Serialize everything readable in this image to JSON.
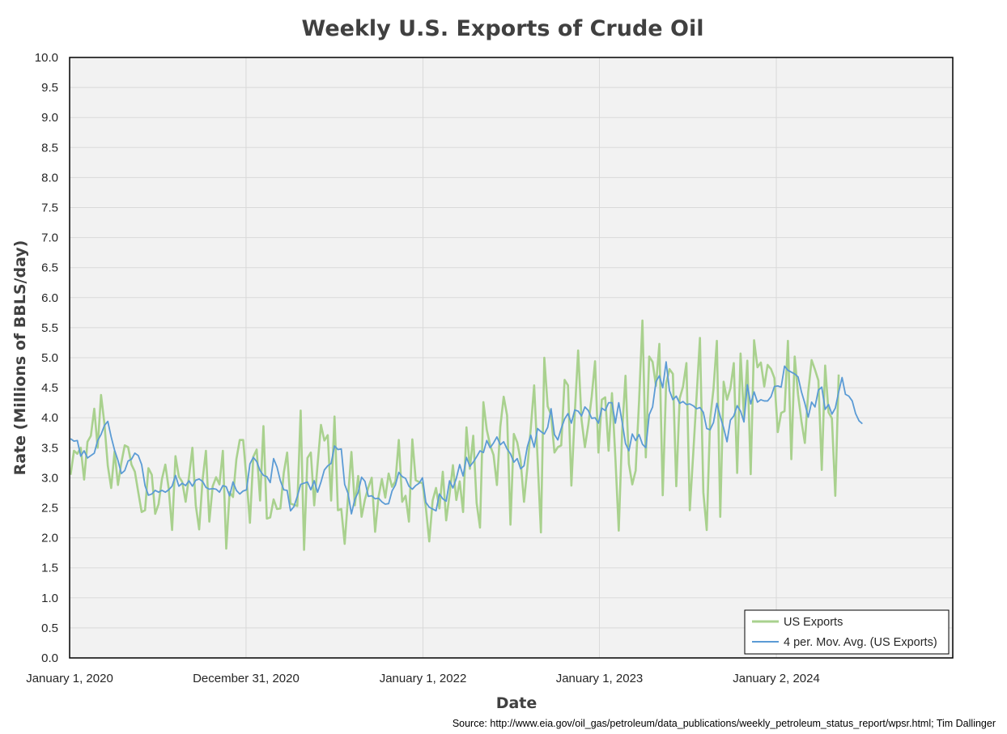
{
  "chart_data": {
    "type": "line",
    "title": "Weekly U.S. Exports of Crude Oil",
    "xlabel": "Date",
    "ylabel": "Rate (Millions of BBLS/day)",
    "ylim": [
      0,
      10
    ],
    "y_ticks": [
      "0.0",
      "0.5",
      "1.0",
      "1.5",
      "2.0",
      "2.5",
      "3.0",
      "3.5",
      "4.0",
      "4.5",
      "5.0",
      "5.5",
      "6.0",
      "6.5",
      "7.0",
      "7.5",
      "8.0",
      "8.5",
      "9.0",
      "9.5",
      "10.0"
    ],
    "xlim": [
      "2020-01-01",
      "2025-01-01"
    ],
    "x_ticks": [
      {
        "date": "2020-01-01",
        "label": "January 1, 2020"
      },
      {
        "date": "2020-12-31",
        "label": "December 31, 2020"
      },
      {
        "date": "2022-01-01",
        "label": "January 1, 2022"
      },
      {
        "date": "2023-01-01",
        "label": "January 1, 2023"
      },
      {
        "date": "2024-01-02",
        "label": "January 2, 2024"
      }
    ],
    "grid": true,
    "legend_position": "bottom-right",
    "series": [
      {
        "name": "US Exports",
        "color": "#a9d18e",
        "start_date": "2020-01-03",
        "interval_days": 7,
        "values": [
          3.05,
          3.45,
          3.4,
          3.5,
          2.97,
          3.6,
          3.7,
          4.15,
          3.5,
          4.38,
          3.9,
          3.2,
          2.83,
          3.44,
          2.88,
          3.25,
          3.54,
          3.51,
          3.22,
          3.1,
          2.76,
          2.43,
          2.46,
          3.16,
          3.05,
          2.4,
          2.56,
          2.98,
          3.22,
          2.82,
          2.13,
          3.36,
          3.02,
          2.93,
          2.6,
          3.02,
          3.5,
          2.54,
          2.14,
          2.96,
          3.45,
          2.27,
          2.86,
          3.01,
          2.89,
          3.45,
          1.82,
          2.76,
          2.68,
          3.31,
          3.63,
          3.63,
          2.98,
          2.25,
          3.35,
          3.47,
          2.62,
          3.86,
          2.32,
          2.34,
          2.64,
          2.48,
          2.49,
          3.08,
          3.42,
          2.57,
          2.55,
          2.53,
          4.12,
          1.8,
          3.33,
          3.42,
          2.54,
          3.22,
          3.88,
          3.62,
          3.71,
          2.62,
          4.02,
          2.46,
          2.48,
          1.9,
          2.68,
          3.43,
          2.54,
          3.03,
          2.35,
          2.64,
          2.84,
          3.0,
          2.1,
          2.68,
          2.98,
          2.67,
          3.07,
          2.85,
          2.94,
          3.63,
          2.6,
          2.7,
          2.27,
          3.64,
          2.96,
          2.93,
          2.91,
          2.5,
          1.94,
          2.62,
          2.83,
          2.49,
          3.1,
          2.29,
          2.72,
          3.21,
          2.63,
          2.94,
          2.43,
          3.84,
          3.15,
          3.7,
          2.58,
          2.17,
          4.26,
          3.8,
          3.54,
          3.38,
          2.88,
          3.85,
          4.35,
          4.04,
          2.22,
          3.73,
          3.59,
          3.29,
          2.6,
          3.17,
          3.82,
          4.54,
          3.34,
          2.09,
          5.0,
          4.19,
          4.05,
          3.42,
          3.51,
          3.54,
          4.63,
          4.54,
          2.87,
          4.06,
          5.12,
          3.97,
          3.51,
          3.88,
          4.35,
          4.94,
          3.42,
          4.3,
          4.34,
          3.45,
          4.41,
          3.34,
          2.12,
          3.77,
          4.7,
          3.23,
          2.89,
          3.12,
          4.27,
          5.62,
          3.34,
          5.02,
          4.93,
          4.53,
          5.23,
          2.71,
          4.57,
          4.81,
          4.73,
          2.86,
          4.32,
          4.52,
          4.91,
          2.46,
          3.39,
          4.35,
          5.33,
          2.76,
          2.13,
          3.97,
          4.48,
          5.28,
          2.35,
          4.6,
          4.3,
          4.49,
          4.91,
          3.08,
          5.07,
          4.01,
          4.95,
          3.06,
          5.29,
          4.84,
          4.92,
          4.52,
          4.88,
          4.81,
          4.66,
          3.76,
          4.08,
          4.11,
          5.28,
          3.31,
          5.02,
          4.38,
          3.94,
          3.58,
          4.43,
          4.96,
          4.8,
          4.62,
          3.13,
          4.87,
          4.09,
          3.99,
          2.7,
          4.72
        ]
      },
      {
        "name": "4 per. Mov. Avg. (US Exports)",
        "color": "#5b9bd5",
        "start_date": "2020-01-03",
        "interval_days": 7,
        "values": [
          3.65,
          3.61,
          3.62,
          3.36,
          3.45,
          3.33,
          3.37,
          3.41,
          3.62,
          3.72,
          3.87,
          3.94,
          3.68,
          3.46,
          3.29,
          3.07,
          3.12,
          3.28,
          3.31,
          3.41,
          3.37,
          3.22,
          2.87,
          2.71,
          2.73,
          2.79,
          2.76,
          2.79,
          2.76,
          2.8,
          2.86,
          3.04,
          2.86,
          2.91,
          2.87,
          2.95,
          2.86,
          2.96,
          2.98,
          2.94,
          2.84,
          2.81,
          2.82,
          2.81,
          2.76,
          2.87,
          2.85,
          2.7,
          2.93,
          2.79,
          2.73,
          2.78,
          2.8,
          3.23,
          3.34,
          3.27,
          3.12,
          3.04,
          3.02,
          2.92,
          3.32,
          3.18,
          2.95,
          2.8,
          2.79,
          2.45,
          2.52,
          2.69,
          2.89,
          2.91,
          2.93,
          2.8,
          2.95,
          2.76,
          2.93,
          3.13,
          3.2,
          3.24,
          3.53,
          3.47,
          3.48,
          2.89,
          2.74,
          2.4,
          2.64,
          2.76,
          3.01,
          2.94,
          2.69,
          2.7,
          2.65,
          2.66,
          2.6,
          2.56,
          2.57,
          2.78,
          2.88,
          3.09,
          3.02,
          2.99,
          2.86,
          2.81,
          2.87,
          2.91,
          3.0,
          2.59,
          2.51,
          2.48,
          2.45,
          2.73,
          2.65,
          2.61,
          2.95,
          2.83,
          2.99,
          3.22,
          3.03,
          3.34,
          3.19,
          3.26,
          3.35,
          3.45,
          3.42,
          3.62,
          3.5,
          3.58,
          3.68,
          3.55,
          3.6,
          3.48,
          3.4,
          3.26,
          3.32,
          3.15,
          3.2,
          3.52,
          3.71,
          3.51,
          3.82,
          3.77,
          3.73,
          3.84,
          4.15,
          3.72,
          3.63,
          3.82,
          3.98,
          4.07,
          3.91,
          4.13,
          4.11,
          4.03,
          4.18,
          4.12,
          3.99,
          4.0,
          3.91,
          4.16,
          4.12,
          4.25,
          4.25,
          3.91,
          4.25,
          3.93,
          3.57,
          3.45,
          3.73,
          3.62,
          3.72,
          3.56,
          3.5,
          4.05,
          4.18,
          4.6,
          4.7,
          4.5,
          4.93,
          4.45,
          4.3,
          4.36,
          4.24,
          4.27,
          4.22,
          4.23,
          4.2,
          4.15,
          4.17,
          4.09,
          3.82,
          3.8,
          3.92,
          4.24,
          4.02,
          3.83,
          3.6,
          3.96,
          4.03,
          4.2,
          4.11,
          3.93,
          4.55,
          4.23,
          4.43,
          4.26,
          4.3,
          4.28,
          4.28,
          4.35,
          4.52,
          4.53,
          4.51,
          4.86,
          4.79,
          4.76,
          4.73,
          4.68,
          4.43,
          4.24,
          4.01,
          4.26,
          4.18,
          4.46,
          4.51,
          4.14,
          4.22,
          4.06,
          4.16,
          4.43,
          4.67,
          4.39,
          4.36,
          4.28,
          4.07,
          3.95,
          3.9
        ]
      }
    ]
  },
  "legend": {
    "items": [
      {
        "label": "US Exports",
        "color": "#a9d18e"
      },
      {
        "label": "4 per. Mov. Avg. (US Exports)",
        "color": "#5b9bd5"
      }
    ]
  },
  "source_text": "Source: http://www.eia.gov/oil_gas/petroleum/data_publications/weekly_petroleum_status_report/wpsr.html; Tim Dallinger"
}
